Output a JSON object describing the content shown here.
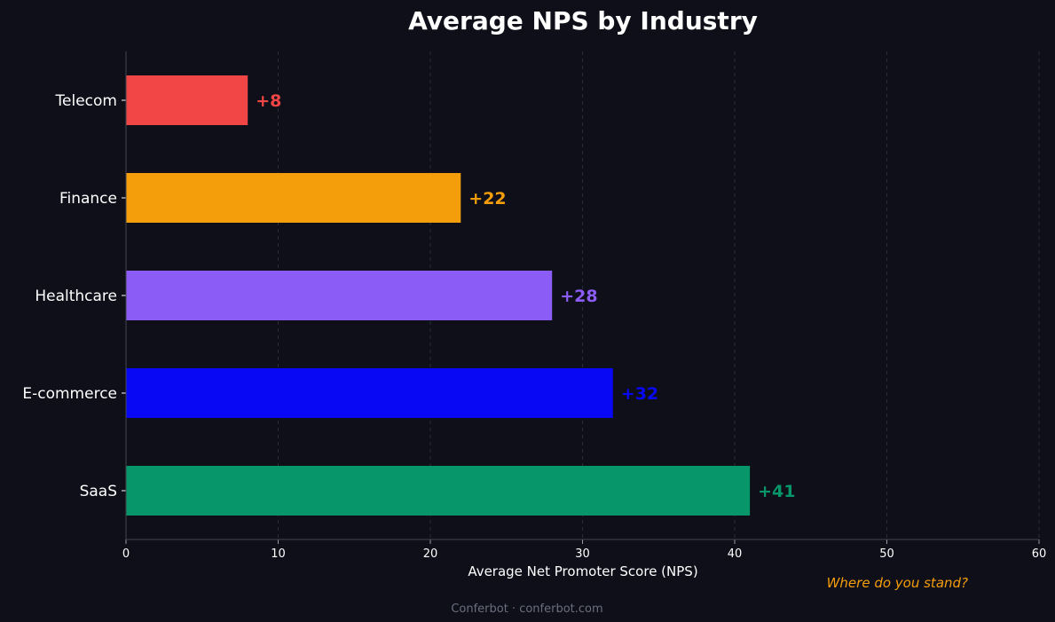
{
  "chart_data": {
    "type": "bar",
    "orientation": "horizontal",
    "title": "Average NPS by Industry",
    "xlabel": "Average Net Promoter Score (NPS)",
    "ylabel": "",
    "xlim": [
      0,
      60
    ],
    "xticks": [
      "0",
      "10",
      "20",
      "30",
      "40",
      "50",
      "60"
    ],
    "grid": "vertical dashed",
    "categories": [
      "Telecom",
      "Finance",
      "Healthcare",
      "E-commerce",
      "SaaS"
    ],
    "values": [
      8,
      22,
      28,
      32,
      41
    ],
    "data_labels": [
      "+8",
      "+22",
      "+28",
      "+32",
      "+41"
    ],
    "colors": [
      "#f24646",
      "#f59e0b",
      "#8b5cf6",
      "#0808f5",
      "#06966a"
    ],
    "annotation": "Where do you stand?",
    "annotation_color": "#f59e0b"
  },
  "footer": "Conferbot · conferbot.com",
  "background": "#0e0f18"
}
